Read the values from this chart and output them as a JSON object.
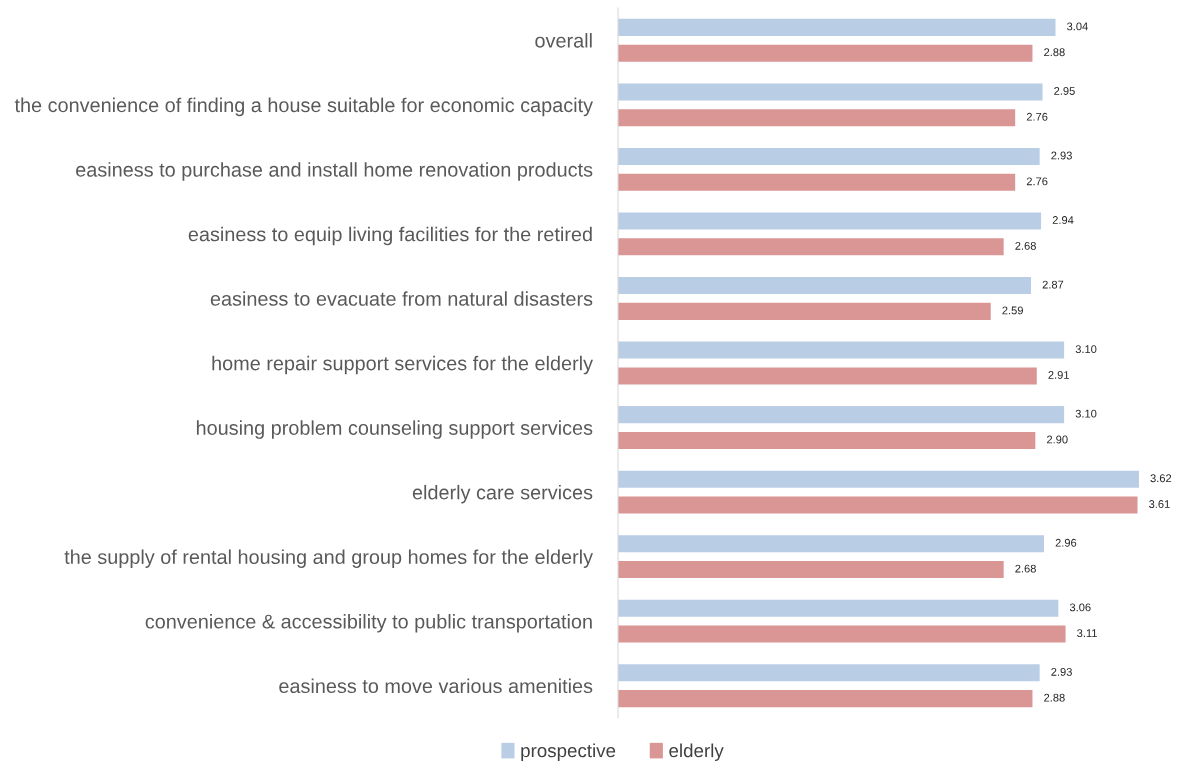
{
  "chart_data": {
    "type": "bar",
    "orientation": "horizontal",
    "categories": [
      "overall",
      "the convenience of finding a house suitable for economic capacity",
      "easiness to purchase and install home renovation products",
      "easiness to equip living facilities for the retired",
      "easiness to evacuate from natural disasters",
      "home repair support services for the elderly",
      "housing problem counseling support services",
      "elderly care services",
      "the supply of rental housing and group homes for the elderly",
      "convenience & accessibility to public transportation",
      "easiness to move various amenities"
    ],
    "series": [
      {
        "name": "prospective",
        "color": "#b9cde5",
        "values": [
          3.04,
          2.95,
          2.93,
          2.94,
          2.87,
          3.1,
          3.1,
          3.62,
          2.96,
          3.06,
          2.93
        ],
        "value_labels": [
          "3.04",
          "2.95",
          "2.93",
          "2.94",
          "2.87",
          "3.10",
          "3.10",
          "3.62",
          "2.96",
          "3.06",
          "2.93"
        ]
      },
      {
        "name": "elderly",
        "color": "#da9694",
        "values": [
          2.88,
          2.76,
          2.76,
          2.68,
          2.59,
          2.91,
          2.9,
          3.61,
          2.68,
          3.11,
          2.88
        ],
        "value_labels": [
          "2.88",
          "2.76",
          "2.76",
          "2.68",
          "2.59",
          "2.91",
          "2.90",
          "3.61",
          "2.68",
          "3.11",
          "2.88"
        ]
      }
    ],
    "tick_labels": "y",
    "grid": false,
    "legend": "bottom"
  }
}
